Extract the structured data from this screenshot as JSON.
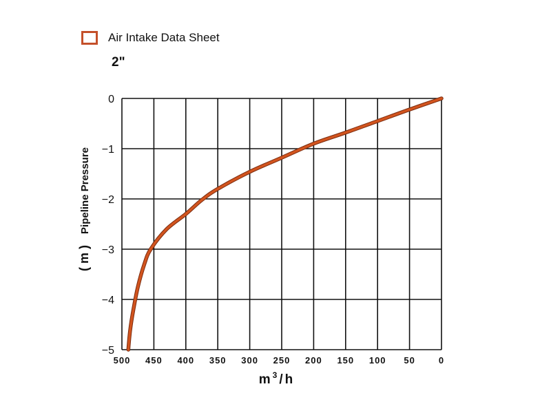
{
  "legend": {
    "label": "Air Intake Data Sheet",
    "color": "#c4502a"
  },
  "subtitle": "2\"",
  "chart_data": {
    "type": "line",
    "title": "Air Intake Data Sheet",
    "subtitle": "2\"",
    "xlabel": "m³/h",
    "xlabel_parts": {
      "base": "m",
      "sup": "3",
      "rest": "/h"
    },
    "ylabel": "Pipeline Pressure",
    "ylabel_unit": "( m )",
    "xlim": [
      500,
      0
    ],
    "ylim": [
      -5,
      0
    ],
    "x_ticks": [
      500,
      450,
      400,
      350,
      300,
      250,
      200,
      150,
      100,
      50,
      0
    ],
    "x_tick_labels": [
      "500",
      "450",
      "400",
      "350",
      "300",
      "250",
      "200",
      "150",
      "100",
      "50",
      "0"
    ],
    "y_ticks": [
      0,
      -1,
      -2,
      -3,
      -4,
      -5
    ],
    "y_tick_labels": [
      "0",
      "−1",
      "−2",
      "−3",
      "−4",
      "−5"
    ],
    "grid": true,
    "legend_position": "top-left",
    "series": [
      {
        "color": "#d2541e",
        "x": [
          0,
          50,
          100,
          150,
          200,
          250,
          300,
          350,
          375,
          400,
          430,
          455,
          465,
          475,
          482,
          487,
          490
        ],
        "y": [
          0,
          -0.22,
          -0.45,
          -0.68,
          -0.9,
          -1.18,
          -1.46,
          -1.8,
          -2.02,
          -2.3,
          -2.6,
          -3.0,
          -3.3,
          -3.75,
          -4.2,
          -4.6,
          -5.0
        ]
      }
    ]
  }
}
